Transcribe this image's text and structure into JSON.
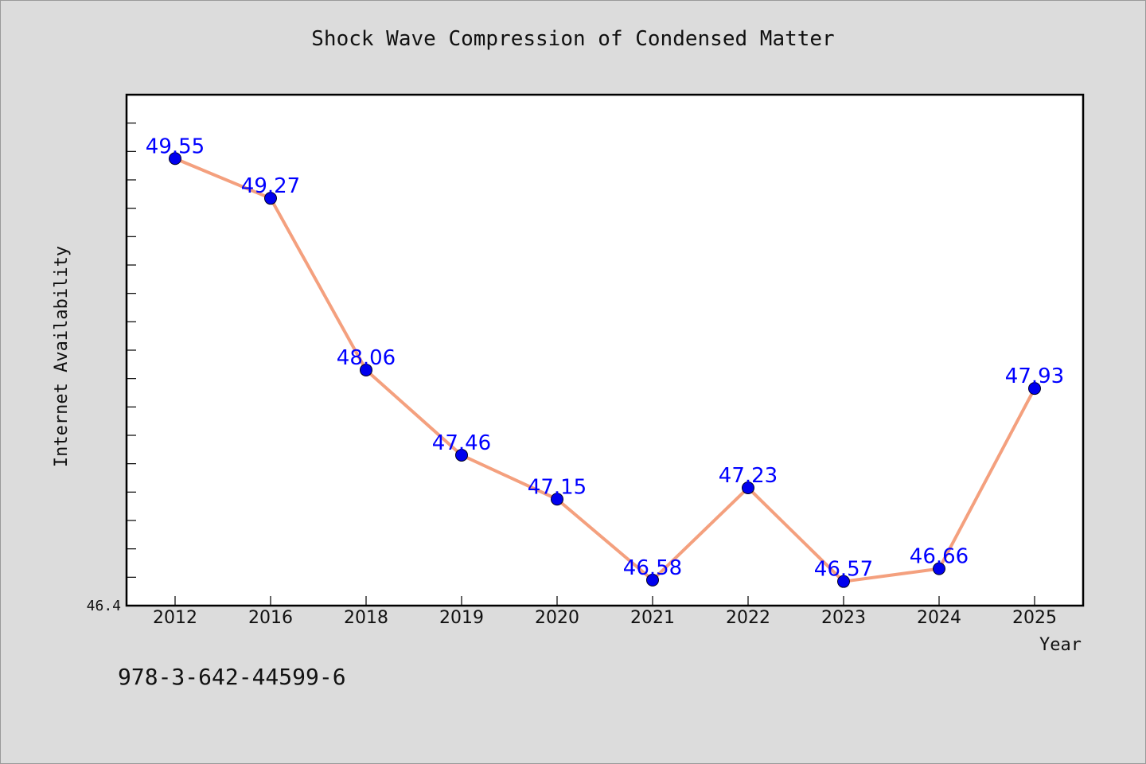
{
  "chart_data": {
    "type": "line",
    "title": "Shock Wave Compression of Condensed Matter",
    "xlabel": "Year",
    "ylabel": "Internet Availability",
    "categories": [
      "2012",
      "2016",
      "2018",
      "2019",
      "2020",
      "2021",
      "2022",
      "2023",
      "2024",
      "2025"
    ],
    "series": [
      {
        "values": [
          49.55,
          49.27,
          48.06,
          47.46,
          47.15,
          46.58,
          47.23,
          46.57,
          46.66,
          47.93
        ],
        "data_labels": [
          "49.55",
          "49.27",
          "48.06",
          "47.46",
          "47.15",
          "46.58",
          "47.23",
          "46.57",
          "46.66",
          "47.93"
        ],
        "line_color": "#f4a07e",
        "marker_color": "#0000ee"
      }
    ],
    "ylim": [
      46.4,
      50.0
    ],
    "y_tick_labels": [
      "46.4"
    ],
    "grid": false,
    "data_label_color": "#0000ff"
  },
  "footer_text": "978-3-642-44599-6"
}
